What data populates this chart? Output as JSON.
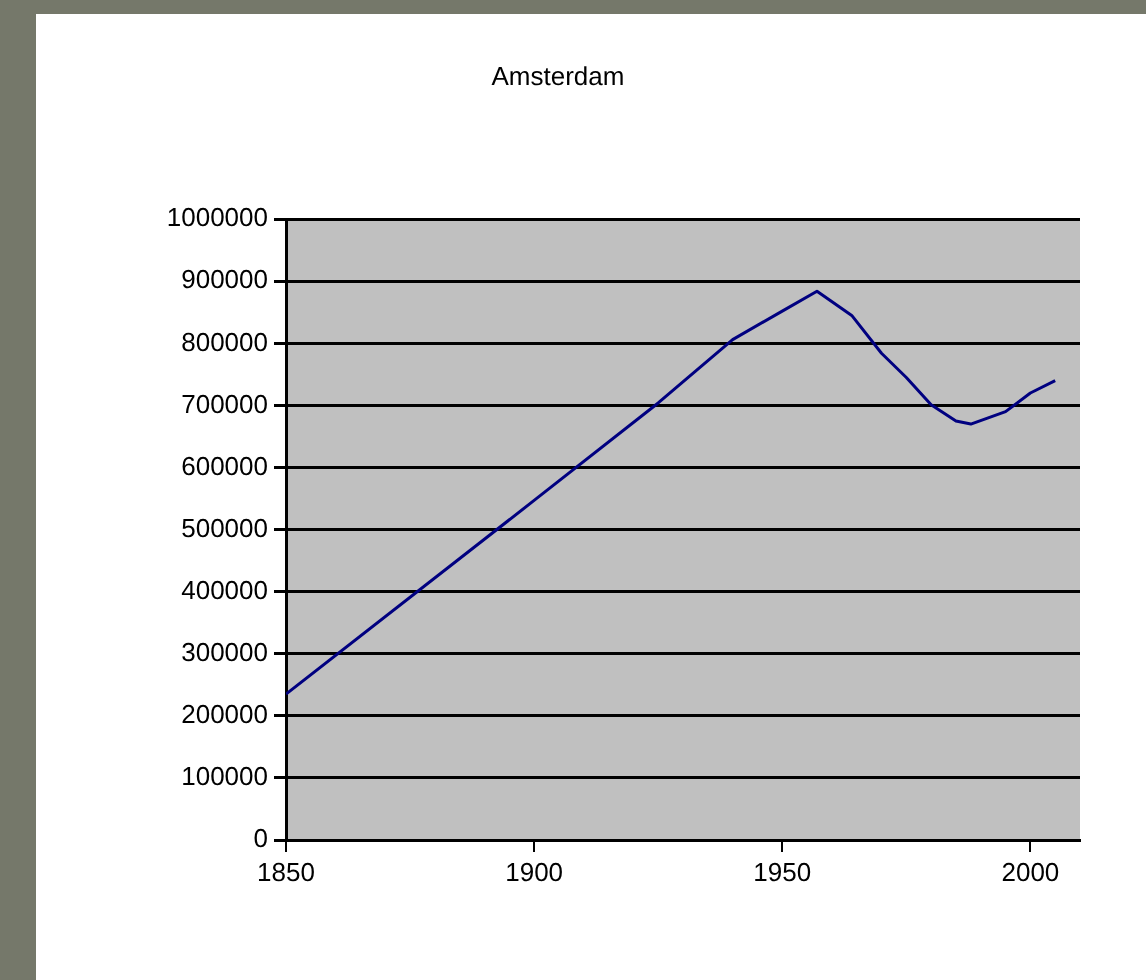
{
  "chart_data": {
    "type": "line",
    "title": "Amsterdam",
    "x": [
      1850,
      1900,
      1925,
      1940,
      1950,
      1957,
      1964,
      1970,
      1975,
      1980,
      1985,
      1988,
      1995,
      2000,
      2005
    ],
    "series": [
      {
        "color": "#000080",
        "values": [
          235000,
          547000,
          704000,
          806000,
          852000,
          884000,
          845000,
          784000,
          745000,
          701000,
          675000,
          670000,
          690000,
          720000,
          740000
        ]
      }
    ],
    "xlim": [
      1850,
      2010
    ],
    "xticks": [
      1850,
      1900,
      1950,
      2000
    ],
    "ylim": [
      0,
      1000000
    ],
    "yticks": [
      0,
      100000,
      200000,
      300000,
      400000,
      500000,
      600000,
      700000,
      800000,
      900000,
      1000000
    ],
    "grid": "y",
    "legend": false,
    "marker": "none",
    "line_style": "solid"
  }
}
